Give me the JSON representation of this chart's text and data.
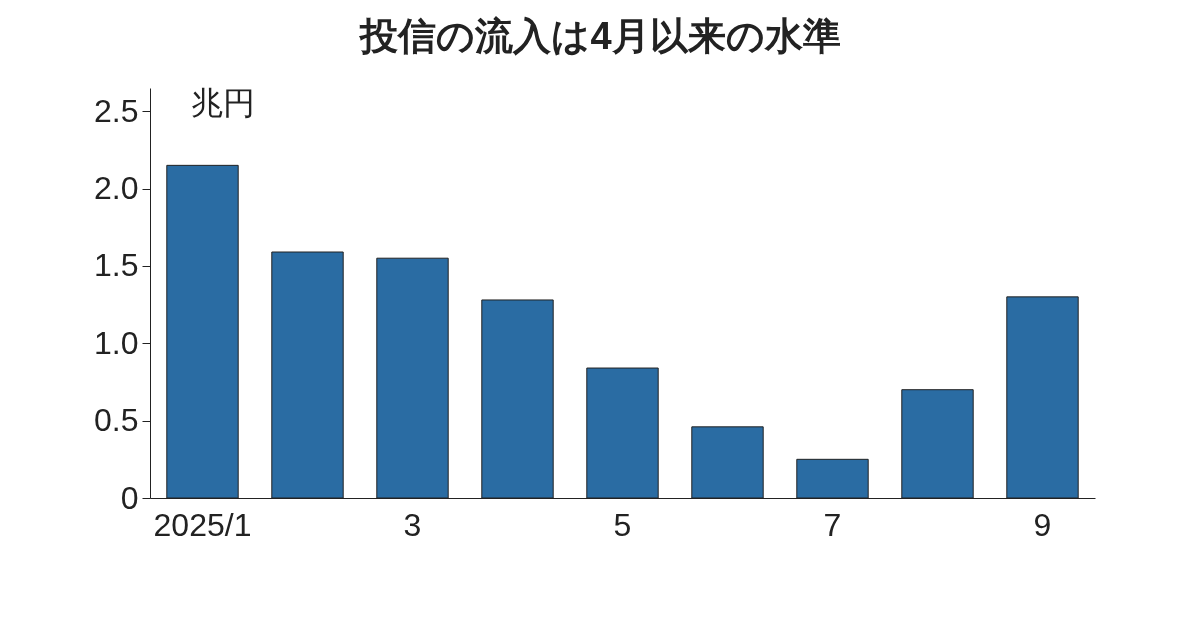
{
  "chart_data": {
    "type": "bar",
    "title": "投信の流入は4月以来の水準",
    "ylabel": "兆円",
    "categories": [
      "2025/1",
      null,
      "3",
      null,
      "5",
      null,
      "7",
      null,
      "9"
    ],
    "values": [
      2.15,
      1.59,
      1.55,
      1.28,
      0.84,
      0.46,
      0.25,
      0.7,
      1.3
    ],
    "color": "#2a6ca3",
    "ylim": [
      0,
      2.65
    ],
    "yticks": [
      0,
      0.5,
      {
        "value": 1,
        "label": "1.0"
      },
      1.5,
      {
        "value": 2,
        "label": "2.0"
      },
      2.5
    ],
    "grid": false
  }
}
